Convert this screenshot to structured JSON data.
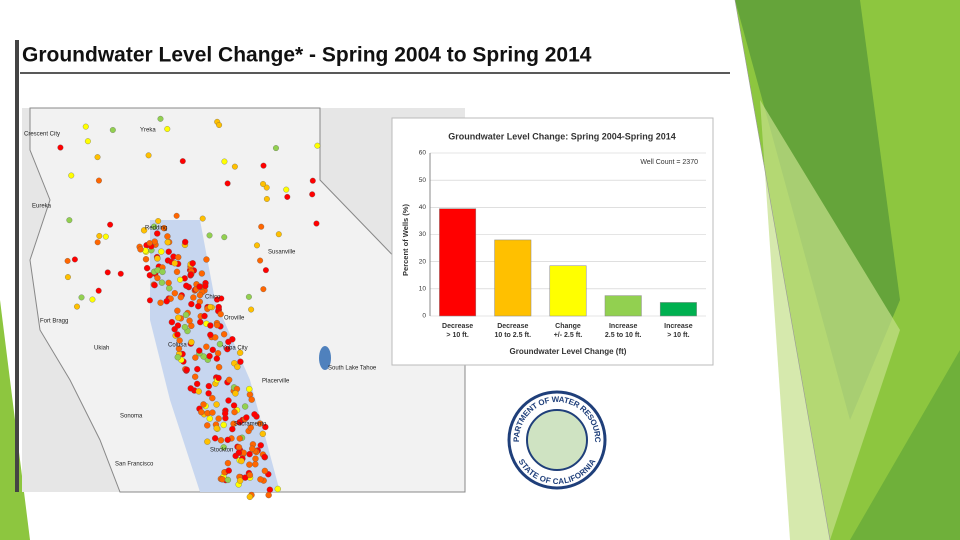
{
  "slide_title": "Groundwater Level Change* - Spring 2004 to Spring 2014",
  "map": {
    "labels": [
      "Crescent City",
      "Yreka",
      "Eureka",
      "Redding",
      "Susanville",
      "Chico",
      "Fort Bragg",
      "Oroville",
      "Ukiah",
      "Colusa",
      "Yuba City",
      "South Lake Tahoe",
      "Placerville",
      "Sonoma",
      "Sacramento",
      "San Francisco",
      "Stockton"
    ]
  },
  "logo": {
    "top": "DEPARTMENT OF WATER RESOURCES",
    "bottom": "STATE OF CALIFORNIA"
  },
  "chart_data": {
    "type": "bar",
    "title": "Groundwater Level Change: Spring 2004-Spring 2014",
    "annotation": "Well Count = 2370",
    "x_label": "Groundwater Level Change (ft)",
    "y_label": "Percent of Wells (%)",
    "categories": [
      "Decrease\n> 10 ft.",
      "Decrease\n10 to 2.5 ft.",
      "Change\n+/- 2.5 ft.",
      "Increase\n2.5 to 10 ft.",
      "Increase\n> 10 ft."
    ],
    "values": [
      39.5,
      28,
      18.5,
      7.5,
      5
    ],
    "colors": [
      "#ff0000",
      "#ffc000",
      "#ffff00",
      "#92d050",
      "#00b050"
    ],
    "ylim": [
      0,
      60
    ],
    "yticks": [
      0,
      10,
      20,
      30,
      40,
      50,
      60
    ],
    "grid": true
  }
}
